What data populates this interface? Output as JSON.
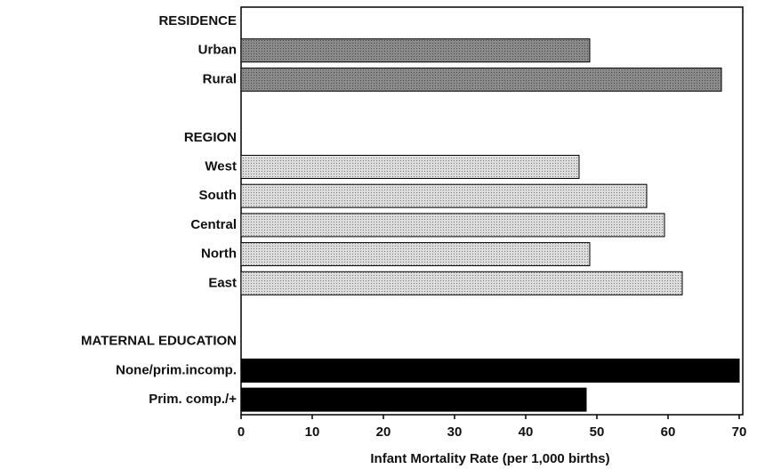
{
  "chart_data": {
    "type": "bar",
    "orientation": "horizontal",
    "x_label": "Infant Mortality Rate (per 1,000 births)",
    "xlim": [
      0,
      70
    ],
    "xticks": [
      0,
      10,
      20,
      30,
      40,
      50,
      60,
      70
    ],
    "groups": [
      {
        "name": "RESIDENCE",
        "color": "#8a8a8a",
        "categories": [
          "Urban",
          "Rural"
        ],
        "values": [
          49,
          67.5
        ]
      },
      {
        "name": "REGION",
        "color": "#dcdcdc",
        "categories": [
          "West",
          "South",
          "Central",
          "North",
          "East"
        ],
        "values": [
          47.5,
          57,
          59.5,
          49,
          62
        ]
      },
      {
        "name": "MATERNAL EDUCATION",
        "color": "#000000",
        "categories": [
          "None/prim.incomp.",
          "Prim. comp./+"
        ],
        "values": [
          70,
          48.5
        ]
      }
    ]
  }
}
